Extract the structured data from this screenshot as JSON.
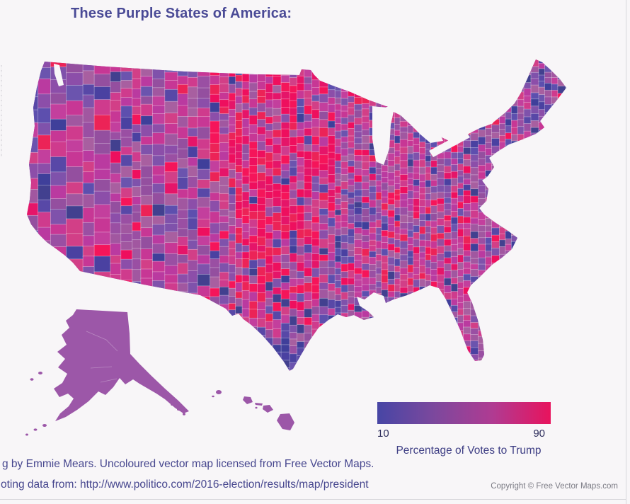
{
  "title": "These Purple States of America:",
  "legend": {
    "min_label": "10",
    "max_label": "90",
    "caption": "Percentage of Votes to Trump",
    "gradient": [
      "#4746a5",
      "#7d489d",
      "#b03b92",
      "#e8135d"
    ]
  },
  "credits": {
    "line1": "g by Emmie Mears. Uncoloured vector map licensed from Free Vector Maps.",
    "line2": "oting data from: http://www.politico.com/2016-election/results/map/president"
  },
  "copyright": "Copyright © Free Vector Maps.com",
  "map": {
    "background": "#f8f6f8",
    "base_fill": "#9d52a3",
    "alaska_fill": "#9c57a8",
    "hawaii_fill": "#9c57a8",
    "county_border": "rgba(255,255,255,0.45)",
    "palette": {
      "red": [
        "#ee0f5e",
        "#f5155a",
        "#e51569",
        "#ec2357"
      ],
      "magenta": [
        "#c73795",
        "#cf3b8d",
        "#ba3aa0",
        "#d23f87",
        "#c33f9d"
      ],
      "purple": [
        "#9a4fa3",
        "#8c4ea9",
        "#a157a0",
        "#7f52ab",
        "#944f9f",
        "#a85fa0"
      ],
      "dark": [
        "#4a41a1",
        "#3f3f9a",
        "#5848a7",
        "#6b54ae",
        "#42408f",
        "#5d4fae"
      ]
    }
  }
}
